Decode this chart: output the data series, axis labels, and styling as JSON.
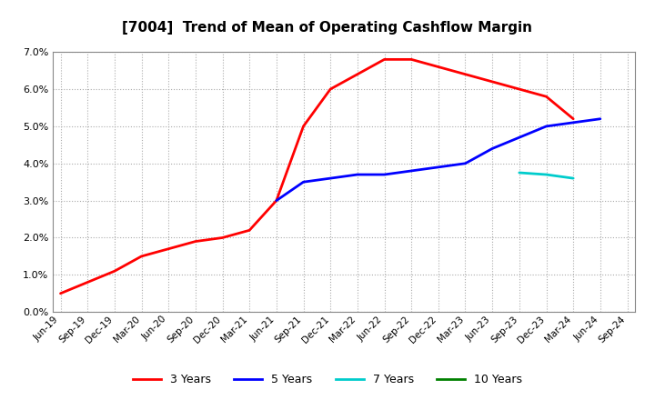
{
  "title": "[7004]  Trend of Mean of Operating Cashflow Margin",
  "title_fontsize": 11,
  "background_color": "#ffffff",
  "plot_bg_color": "#ffffff",
  "grid_color": "#aaaaaa",
  "x_labels": [
    "Jun-19",
    "Sep-19",
    "Dec-19",
    "Mar-20",
    "Jun-20",
    "Sep-20",
    "Dec-20",
    "Mar-21",
    "Jun-21",
    "Sep-21",
    "Dec-21",
    "Mar-22",
    "Jun-22",
    "Sep-22",
    "Dec-22",
    "Mar-23",
    "Jun-23",
    "Sep-23",
    "Dec-23",
    "Mar-24",
    "Jun-24",
    "Sep-24"
  ],
  "series_3y": {
    "label": "3 Years",
    "color": "#ff0000",
    "data": [
      [
        0,
        0.005
      ],
      [
        1,
        0.008
      ],
      [
        2,
        0.011
      ],
      [
        3,
        0.015
      ],
      [
        4,
        0.017
      ],
      [
        5,
        0.019
      ],
      [
        6,
        0.02
      ],
      [
        7,
        0.022
      ],
      [
        8,
        0.03
      ],
      [
        9,
        0.05
      ],
      [
        10,
        0.06
      ],
      [
        11,
        0.064
      ],
      [
        12,
        0.068
      ],
      [
        13,
        0.068
      ],
      [
        14,
        0.066
      ],
      [
        15,
        0.064
      ],
      [
        16,
        0.062
      ],
      [
        17,
        0.06
      ],
      [
        18,
        0.058
      ],
      [
        19,
        0.052
      ],
      [
        20,
        null
      ],
      [
        21,
        null
      ]
    ]
  },
  "series_5y": {
    "label": "5 Years",
    "color": "#0000ff",
    "data": [
      [
        0,
        null
      ],
      [
        1,
        null
      ],
      [
        2,
        null
      ],
      [
        3,
        null
      ],
      [
        4,
        null
      ],
      [
        5,
        null
      ],
      [
        6,
        null
      ],
      [
        7,
        null
      ],
      [
        8,
        0.03
      ],
      [
        9,
        0.035
      ],
      [
        10,
        0.036
      ],
      [
        11,
        0.037
      ],
      [
        12,
        0.037
      ],
      [
        13,
        0.038
      ],
      [
        14,
        0.039
      ],
      [
        15,
        0.04
      ],
      [
        16,
        0.044
      ],
      [
        17,
        0.047
      ],
      [
        18,
        0.05
      ],
      [
        19,
        0.051
      ],
      [
        20,
        0.052
      ],
      [
        21,
        null
      ]
    ]
  },
  "series_7y": {
    "label": "7 Years",
    "color": "#00cccc",
    "data": [
      [
        0,
        null
      ],
      [
        1,
        null
      ],
      [
        2,
        null
      ],
      [
        3,
        null
      ],
      [
        4,
        null
      ],
      [
        5,
        null
      ],
      [
        6,
        null
      ],
      [
        7,
        null
      ],
      [
        8,
        null
      ],
      [
        9,
        null
      ],
      [
        10,
        null
      ],
      [
        11,
        null
      ],
      [
        12,
        null
      ],
      [
        13,
        null
      ],
      [
        14,
        null
      ],
      [
        15,
        null
      ],
      [
        16,
        null
      ],
      [
        17,
        0.0375
      ],
      [
        18,
        0.037
      ],
      [
        19,
        0.036
      ],
      [
        20,
        null
      ],
      [
        21,
        null
      ]
    ]
  },
  "series_10y": {
    "label": "10 Years",
    "color": "#008000",
    "data": [
      [
        0,
        null
      ],
      [
        1,
        null
      ],
      [
        2,
        null
      ],
      [
        3,
        null
      ],
      [
        4,
        null
      ],
      [
        5,
        null
      ],
      [
        6,
        null
      ],
      [
        7,
        null
      ],
      [
        8,
        null
      ],
      [
        9,
        null
      ],
      [
        10,
        null
      ],
      [
        11,
        null
      ],
      [
        12,
        null
      ],
      [
        13,
        null
      ],
      [
        14,
        null
      ],
      [
        15,
        null
      ],
      [
        16,
        null
      ],
      [
        17,
        null
      ],
      [
        18,
        null
      ],
      [
        19,
        null
      ],
      [
        20,
        null
      ],
      [
        21,
        null
      ]
    ]
  },
  "ylim": [
    0.0,
    0.07
  ],
  "yticks": [
    0.0,
    0.01,
    0.02,
    0.03,
    0.04,
    0.05,
    0.06,
    0.07
  ]
}
